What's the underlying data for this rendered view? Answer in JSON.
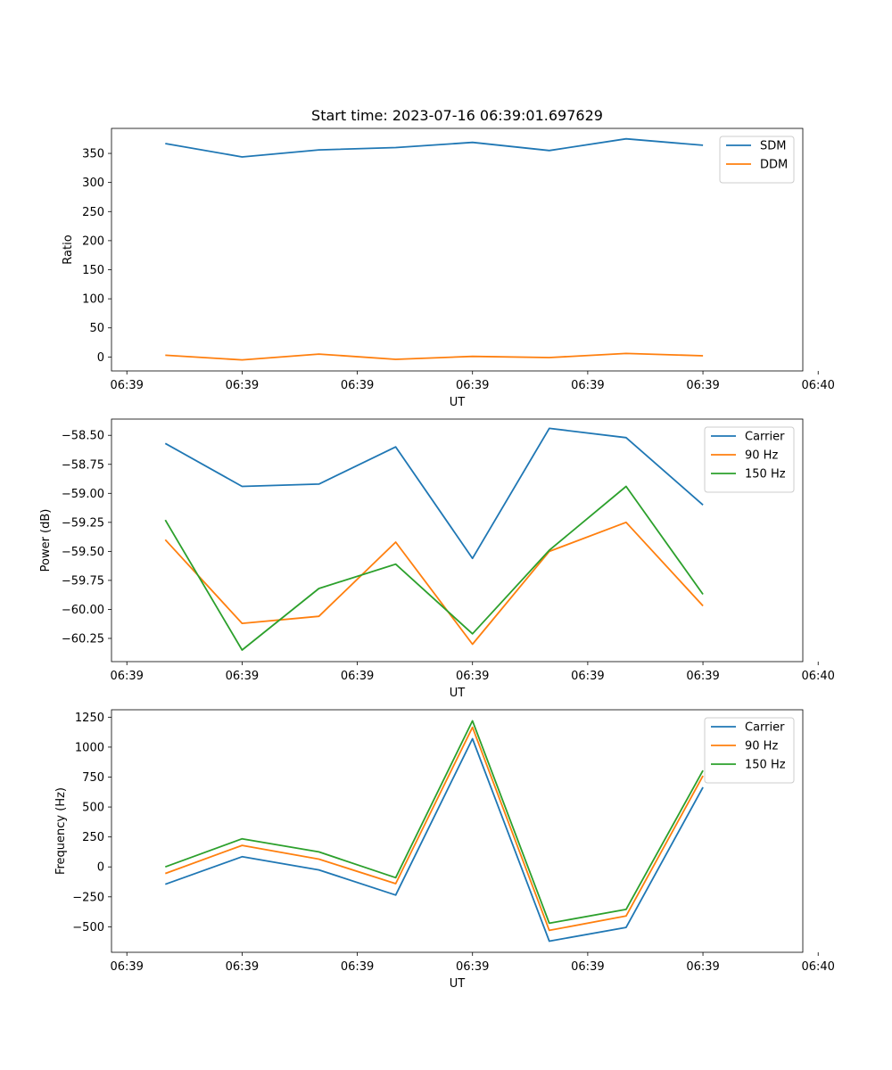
{
  "chart_data": [
    {
      "type": "line",
      "title": "Start time: 2023-07-16 06:39:01.697629",
      "xlabel": "UT",
      "ylabel": "Ratio",
      "x": [
        1,
        2,
        3,
        4,
        5,
        6,
        7,
        8
      ],
      "xlim": [
        0.3,
        9.3
      ],
      "xticks": [
        0.5,
        2,
        3.5,
        5,
        6.5,
        8,
        9.5
      ],
      "xtick_labels": [
        "06:39",
        "06:39",
        "06:39",
        "06:39",
        "06:39",
        "06:39",
        "06:40"
      ],
      "ylim": [
        -24,
        393
      ],
      "yticks": [
        0,
        50,
        100,
        150,
        200,
        250,
        300,
        350
      ],
      "ytick_labels": [
        "0",
        "50",
        "100",
        "150",
        "200",
        "250",
        "300",
        "350"
      ],
      "legend": "top-right",
      "series": [
        {
          "name": "SDM",
          "color": "#1f77b4",
          "values": [
            367,
            344,
            356,
            360,
            369,
            355,
            375,
            364
          ]
        },
        {
          "name": "DDM",
          "color": "#ff7f0e",
          "values": [
            3,
            -5,
            5,
            -4,
            1,
            -1,
            6,
            2
          ]
        }
      ]
    },
    {
      "type": "line",
      "title": "",
      "xlabel": "UT",
      "ylabel": "Power (dB)",
      "x": [
        1,
        2,
        3,
        4,
        5,
        6,
        7,
        8
      ],
      "xlim": [
        0.3,
        9.3
      ],
      "xticks": [
        0.5,
        2,
        3.5,
        5,
        6.5,
        8,
        9.5
      ],
      "xtick_labels": [
        "06:39",
        "06:39",
        "06:39",
        "06:39",
        "06:39",
        "06:39",
        "06:40"
      ],
      "ylim": [
        -60.45,
        -58.36
      ],
      "yticks": [
        -58.5,
        -58.75,
        -59.0,
        -59.25,
        -59.5,
        -59.75,
        -60.0,
        -60.25
      ],
      "ytick_labels": [
        "−58.50",
        "−58.75",
        "−59.00",
        "−59.25",
        "−59.50",
        "−59.75",
        "−60.00",
        "−60.25"
      ],
      "legend": "top-right",
      "series": [
        {
          "name": "Carrier",
          "color": "#1f77b4",
          "values": [
            -58.57,
            -58.94,
            -58.92,
            -58.6,
            -59.56,
            -58.44,
            -58.52,
            -59.1
          ]
        },
        {
          "name": "90 Hz",
          "color": "#ff7f0e",
          "values": [
            -59.4,
            -60.12,
            -60.06,
            -59.42,
            -60.3,
            -59.5,
            -59.25,
            -59.97
          ]
        },
        {
          "name": "150 Hz",
          "color": "#2ca02c",
          "values": [
            -59.23,
            -60.35,
            -59.82,
            -59.61,
            -60.21,
            -59.49,
            -58.94,
            -59.87
          ]
        }
      ]
    },
    {
      "type": "line",
      "title": "",
      "xlabel": "UT",
      "ylabel": "Frequency (Hz)",
      "x": [
        1,
        2,
        3,
        4,
        5,
        6,
        7,
        8
      ],
      "xlim": [
        0.3,
        9.3
      ],
      "xticks": [
        0.5,
        2,
        3.5,
        5,
        6.5,
        8,
        9.5
      ],
      "xtick_labels": [
        "06:39",
        "06:39",
        "06:39",
        "06:39",
        "06:39",
        "06:39",
        "06:40"
      ],
      "ylim": [
        -713,
        1312
      ],
      "yticks": [
        -500,
        -250,
        0,
        250,
        500,
        750,
        1000,
        1250
      ],
      "ytick_labels": [
        "−500",
        "−250",
        "0",
        "250",
        "500",
        "750",
        "1000",
        "1250"
      ],
      "legend": "top-right",
      "series": [
        {
          "name": "Carrier",
          "color": "#1f77b4",
          "values": [
            -145,
            85,
            -25,
            -235,
            1070,
            -620,
            -505,
            665
          ]
        },
        {
          "name": "90 Hz",
          "color": "#ff7f0e",
          "values": [
            -55,
            180,
            65,
            -140,
            1165,
            -530,
            -410,
            760
          ]
        },
        {
          "name": "150 Hz",
          "color": "#2ca02c",
          "values": [
            0,
            235,
            125,
            -90,
            1220,
            -470,
            -355,
            805
          ]
        }
      ]
    }
  ]
}
